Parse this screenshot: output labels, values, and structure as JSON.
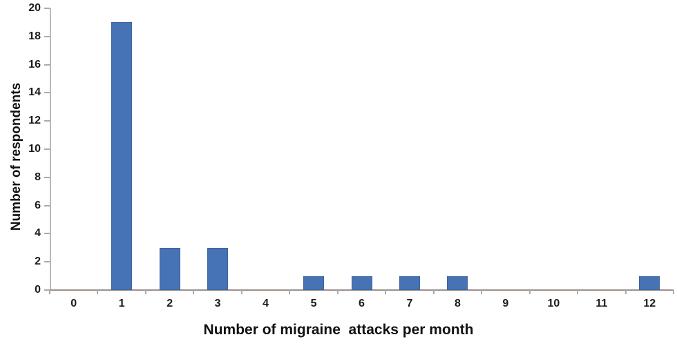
{
  "chart_data": {
    "type": "bar",
    "title": "",
    "xlabel": "Number of migraine  attacks per month",
    "ylabel": "Number of respondents",
    "categories": [
      "0",
      "1",
      "2",
      "3",
      "4",
      "5",
      "6",
      "7",
      "8",
      "9",
      "10",
      "11",
      "12"
    ],
    "values": [
      0,
      19,
      3,
      3,
      0,
      1,
      1,
      1,
      1,
      0,
      0,
      0,
      1
    ],
    "y_tick_labels": [
      "0",
      "2",
      "4",
      "6",
      "8",
      "10",
      "12",
      "14",
      "16",
      "18",
      "20"
    ],
    "ylim": [
      0,
      20
    ],
    "ytick_step": 2,
    "grid": false,
    "legend_position": "none",
    "colors": {
      "bar_fill": "#4673b4",
      "bar_edge": "#3c649f",
      "x_axis_line": "#9c918a",
      "y_axis_line": "#b8b8b8",
      "tick_mark": "#aaaaaa",
      "tick_text": "#1a1a1a",
      "title_text": "#111111",
      "background": "#ffffff"
    }
  }
}
